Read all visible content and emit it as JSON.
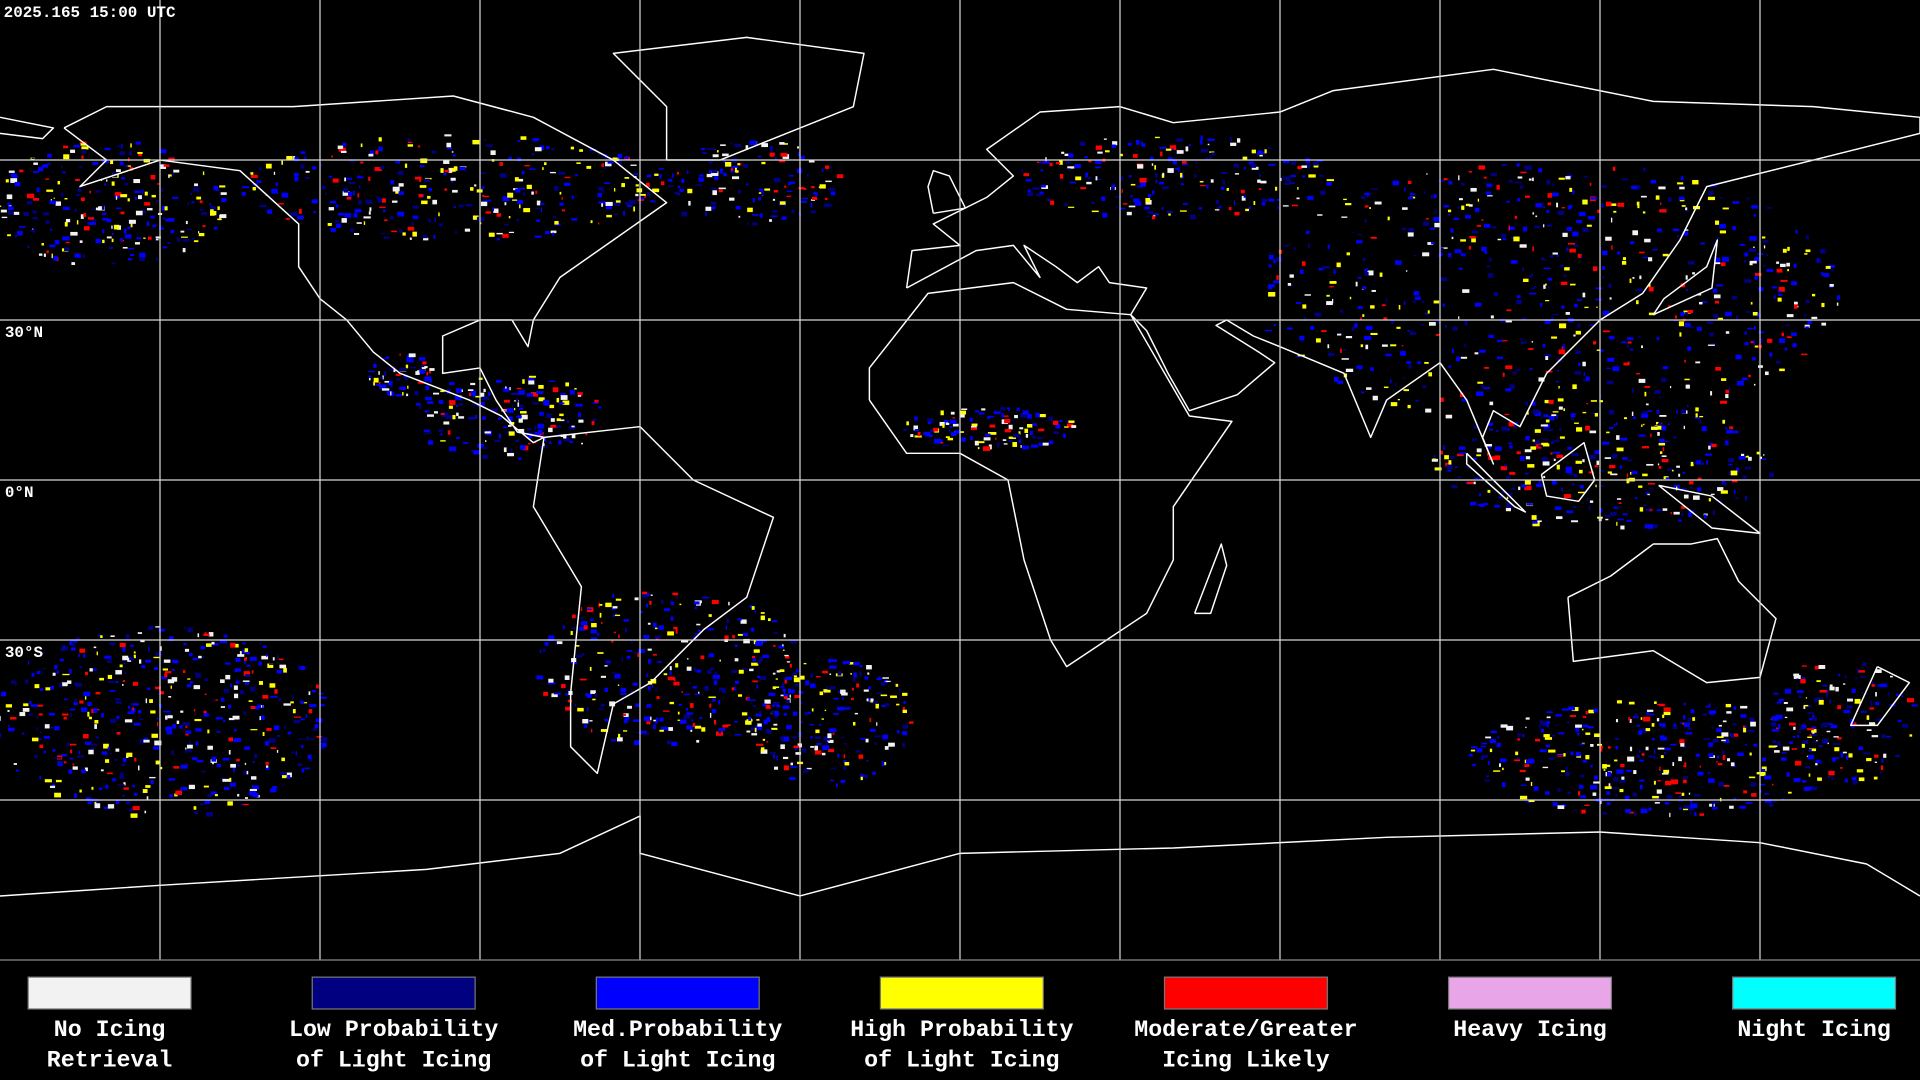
{
  "header": {
    "timestamp": "2025.165 15:00 UTC"
  },
  "map": {
    "latitude_labels": [
      "30°N",
      "0°N",
      "30°S"
    ]
  },
  "legend": [
    {
      "color": "#f2f2f2",
      "lines": [
        "No Icing",
        "Retrieval"
      ]
    },
    {
      "color": "#000080",
      "lines": [
        "Low Probability",
        "of Light Icing"
      ]
    },
    {
      "color": "#0000ff",
      "lines": [
        "Med.Probability",
        "of Light Icing"
      ]
    },
    {
      "color": "#ffff00",
      "lines": [
        "High Probability",
        "of Light Icing"
      ]
    },
    {
      "color": "#ff0000",
      "lines": [
        "Moderate/Greater",
        "Icing Likely"
      ]
    },
    {
      "color": "#e8a6e8",
      "lines": [
        "Heavy Icing"
      ]
    },
    {
      "color": "#00ffff",
      "lines": [
        "Night Icing"
      ]
    }
  ]
}
